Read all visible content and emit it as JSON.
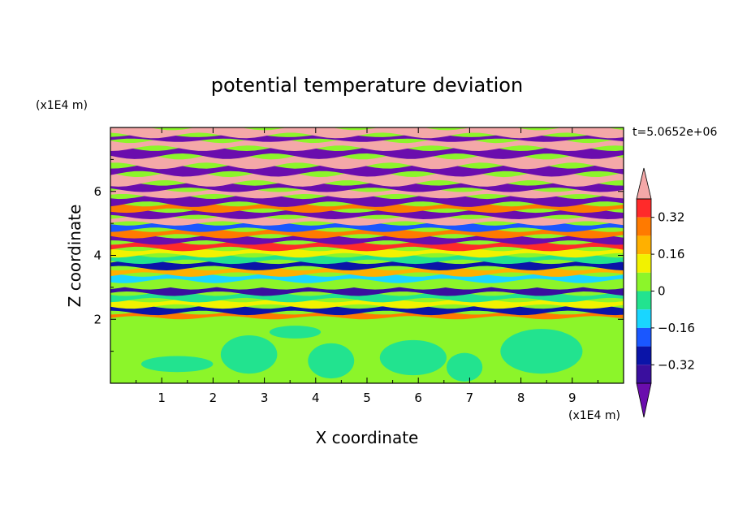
{
  "chart_data": {
    "type": "heatmap",
    "title": "potential temperature deviation",
    "xlabel": "X coordinate",
    "ylabel": "Z coordinate",
    "x_unit": "(x1E4 m)",
    "y_unit": "(x1E4 m)",
    "time_label": "t=5.0652e+06",
    "xlim": [
      0,
      10
    ],
    "ylim": [
      0,
      8
    ],
    "x_ticks": [
      "1",
      "2",
      "3",
      "4",
      "5",
      "6",
      "7",
      "8",
      "9"
    ],
    "y_ticks": [
      "2",
      "4",
      "6"
    ],
    "colorbar": {
      "levels": [
        -0.48,
        -0.4,
        -0.32,
        -0.24,
        -0.16,
        -0.08,
        0,
        0.08,
        0.16,
        0.24,
        0.32,
        0.4,
        0.48
      ],
      "tick_labels": [
        "0.32",
        "0.16",
        "0",
        "−0.16",
        "−0.32"
      ],
      "tick_values": [
        0.32,
        0.16,
        0,
        -0.16,
        -0.32
      ],
      "colors": [
        "#6a0dad",
        "#3a0f9e",
        "#0a14a8",
        "#1a57ff",
        "#19d6ff",
        "#22e38f",
        "#8cf52a",
        "#f2f200",
        "#ffb000",
        "#ff7a00",
        "#ff2a2a",
        "#f4a8a8"
      ],
      "extend": "both"
    },
    "layers": [
      {
        "z_from": 0.0,
        "z_to": 2.05,
        "value": 0.02
      },
      {
        "z_from": 2.05,
        "z_to": 2.2,
        "value": 0.3
      },
      {
        "z_from": 2.2,
        "z_to": 2.4,
        "value": -0.3
      },
      {
        "z_from": 2.4,
        "z_to": 2.6,
        "value": 0.12
      },
      {
        "z_from": 2.6,
        "z_to": 2.8,
        "value": -0.05
      },
      {
        "z_from": 2.8,
        "z_to": 3.0,
        "value": -0.36
      },
      {
        "z_from": 3.0,
        "z_to": 3.2,
        "value": 0.05
      },
      {
        "z_from": 3.2,
        "z_to": 3.4,
        "value": -0.12
      },
      {
        "z_from": 3.4,
        "z_to": 3.6,
        "value": 0.2
      },
      {
        "z_from": 3.6,
        "z_to": 3.8,
        "value": -0.3
      },
      {
        "z_from": 3.8,
        "z_to": 4.0,
        "value": -0.05
      },
      {
        "z_from": 4.0,
        "z_to": 4.2,
        "value": 0.1
      },
      {
        "z_from": 4.2,
        "z_to": 4.4,
        "value": 0.35
      },
      {
        "z_from": 4.4,
        "z_to": 4.6,
        "value": -0.44
      },
      {
        "z_from": 4.6,
        "z_to": 4.8,
        "value": 0.26
      },
      {
        "z_from": 4.8,
        "z_to": 5.0,
        "value": -0.2
      },
      {
        "z_from": 5.0,
        "z_to": 5.2,
        "value": 0.44
      },
      {
        "z_from": 5.2,
        "z_to": 5.4,
        "value": -0.44
      },
      {
        "z_from": 5.4,
        "z_to": 5.6,
        "value": 0.3
      },
      {
        "z_from": 5.6,
        "z_to": 5.85,
        "value": -0.46
      },
      {
        "z_from": 5.85,
        "z_to": 6.05,
        "value": 0.46
      },
      {
        "z_from": 6.05,
        "z_to": 6.25,
        "value": -0.46
      },
      {
        "z_from": 6.25,
        "z_to": 6.55,
        "value": 0.46
      },
      {
        "z_from": 6.55,
        "z_to": 6.8,
        "value": -0.46
      },
      {
        "z_from": 6.8,
        "z_to": 7.1,
        "value": 0.46
      },
      {
        "z_from": 7.1,
        "z_to": 7.35,
        "value": -0.46
      },
      {
        "z_from": 7.35,
        "z_to": 7.6,
        "value": 0.46
      },
      {
        "z_from": 7.6,
        "z_to": 7.75,
        "value": -0.46
      },
      {
        "z_from": 7.75,
        "z_to": 8.0,
        "value": 0.46
      }
    ],
    "patches": [
      {
        "x": 2.7,
        "z": 0.9,
        "rx": 0.55,
        "rz": 0.6,
        "value": -0.04
      },
      {
        "x": 4.3,
        "z": 0.7,
        "rx": 0.45,
        "rz": 0.55,
        "value": -0.04
      },
      {
        "x": 5.9,
        "z": 0.8,
        "rx": 0.65,
        "rz": 0.55,
        "value": -0.04
      },
      {
        "x": 8.4,
        "z": 1.0,
        "rx": 0.8,
        "rz": 0.7,
        "value": -0.04
      },
      {
        "x": 1.3,
        "z": 0.6,
        "rx": 0.7,
        "rz": 0.25,
        "value": -0.04
      },
      {
        "x": 6.9,
        "z": 0.5,
        "rx": 0.35,
        "rz": 0.45,
        "value": -0.04
      },
      {
        "x": 3.6,
        "z": 1.6,
        "rx": 0.5,
        "rz": 0.2,
        "value": -0.04
      }
    ],
    "grid": false
  }
}
